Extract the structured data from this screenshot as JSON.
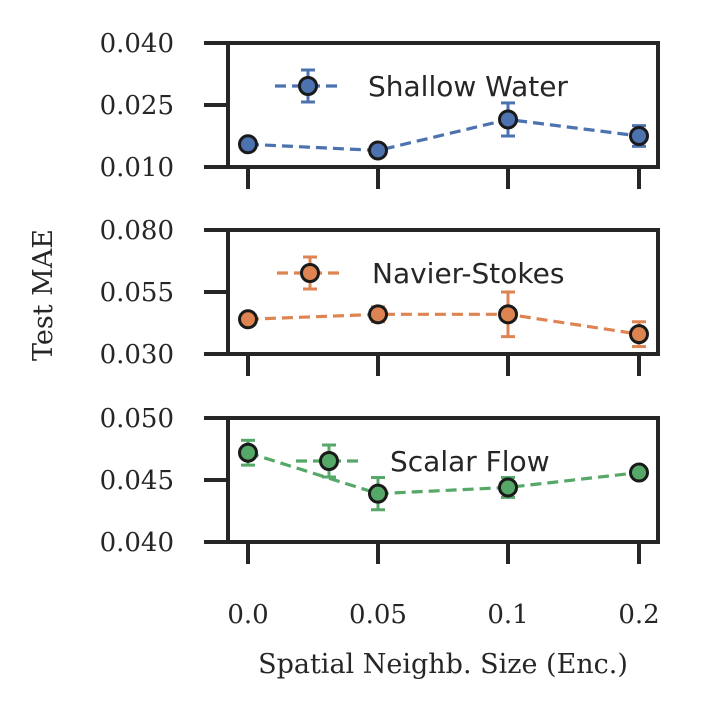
{
  "chart_data": {
    "type": "line",
    "ylabel": "Test MAE",
    "xlabel": "Spatial Neighb. Size (Enc.)",
    "x_categories": [
      "0.0",
      "0.05",
      "0.1",
      "0.2"
    ],
    "panels": [
      {
        "name": "shallow-water",
        "legend": "Shallow Water",
        "color": "#4c72b0",
        "ylim": [
          0.01,
          0.04
        ],
        "yticks": [
          "0.040",
          "0.025",
          "0.010"
        ],
        "yticks_values": [
          0.04,
          0.025,
          0.01
        ],
        "values": [
          0.0155,
          0.014,
          0.0215,
          0.0175
        ],
        "errors": [
          0.0005,
          0.0005,
          0.004,
          0.0025
        ]
      },
      {
        "name": "navier-stokes",
        "legend": "Navier-Stokes",
        "color": "#dd8452",
        "ylim": [
          0.03,
          0.08
        ],
        "yticks": [
          "0.080",
          "0.055",
          "0.030"
        ],
        "yticks_values": [
          0.08,
          0.055,
          0.03
        ],
        "values": [
          0.044,
          0.046,
          0.046,
          0.038
        ],
        "errors": [
          0.001,
          0.003,
          0.009,
          0.005
        ]
      },
      {
        "name": "scalar-flow",
        "legend": "Scalar Flow",
        "color": "#55a868",
        "ylim": [
          0.04,
          0.05
        ],
        "yticks": [
          "0.050",
          "0.045",
          "0.040"
        ],
        "yticks_values": [
          0.05,
          0.045,
          0.04
        ],
        "values": [
          0.0472,
          0.0439,
          0.0444,
          0.0456
        ],
        "errors": [
          0.001,
          0.0013,
          0.0008,
          0.0004
        ]
      }
    ]
  }
}
